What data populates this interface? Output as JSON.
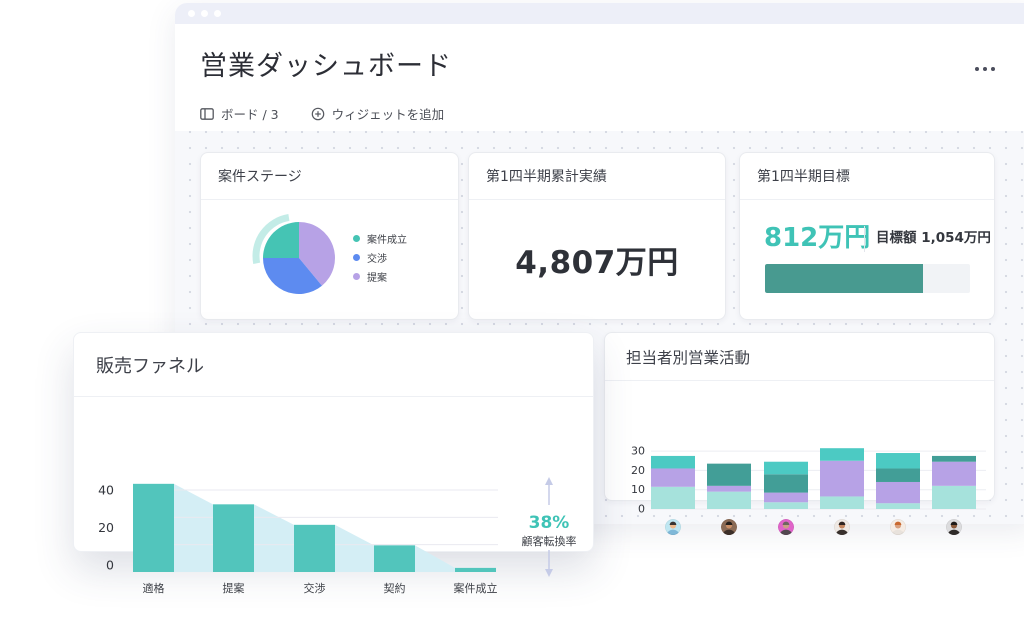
{
  "header": {
    "title": "営業ダッシュボード",
    "board_label": "ボード / 3",
    "add_widget_label": "ウィジェットを追加",
    "window_controls": [
      "dot",
      "dot",
      "dot"
    ],
    "more_options_icon": "ellipsis"
  },
  "colors": {
    "accent_teal": "#3fc3b6",
    "progress_fill": "#489a90",
    "progress_track": "#f1f3f6",
    "pie_teal": "#45c4b4",
    "pie_blue": "#5d8bf0",
    "pie_purple": "#b7a2e6",
    "funnel_bar": "#52c5bc",
    "funnel_area": "#d4eef5",
    "stack_mint": "#a6e2dc",
    "stack_purple": "#b7a2e6",
    "stack_darkteal": "#429e97",
    "stack_teal": "#4ccac3",
    "titlebar": "#edeff8",
    "grid_line": "#e9e9f0",
    "arrow": "#c5cbe7"
  },
  "cards": {
    "deal_stage": {
      "title": "案件ステージ"
    },
    "q1_actual": {
      "title": "第1四半期累計実績",
      "value": "4,807万円"
    },
    "q1_target": {
      "title": "第1四半期目標",
      "value": "812万円",
      "target_label": "目標額 1,054万円",
      "progress_ratio": 0.77
    },
    "funnel": {
      "title": "販売ファネル"
    },
    "activity": {
      "title": "担当者別営業活動",
      "avatars": [
        {
          "name": "avatar-1",
          "bg": "#bfe7f2",
          "skin": "#edb98c",
          "hair": "#3a3430",
          "shirt": "#7fb8d8"
        },
        {
          "name": "avatar-2",
          "bg": "#8a6a55",
          "skin": "#c98d64",
          "hair": "#241f1c",
          "shirt": "#3c2f28"
        },
        {
          "name": "avatar-3",
          "bg": "#e064c9",
          "skin": "#caa083",
          "hair": "#6e6560",
          "shirt": "#52474f"
        },
        {
          "name": "avatar-4",
          "bg": "#efe9e4",
          "skin": "#c2855f",
          "hair": "#2e2320",
          "shirt": "#38302c"
        },
        {
          "name": "avatar-5",
          "bg": "#f5ece4",
          "skin": "#d9a07e",
          "hair": "#c9692f",
          "shirt": "#e8e2dc"
        },
        {
          "name": "avatar-6",
          "bg": "#dcdcde",
          "skin": "#8a5a3c",
          "hair": "#1d1a18",
          "shirt": "#2f2b29"
        }
      ]
    }
  },
  "chart_data": [
    {
      "id": "deal-stage-pie",
      "type": "pie",
      "title": "案件ステージ",
      "slices": [
        {
          "label": "案件成立",
          "value": 25,
          "color": "#45c4b4"
        },
        {
          "label": "交渉",
          "value": 36,
          "color": "#5d8bf0"
        },
        {
          "label": "提案",
          "value": 39,
          "color": "#b7a2e6"
        }
      ],
      "legend_position": "right",
      "highlight": {
        "slice": "案件成立",
        "style": "outer-arc"
      }
    },
    {
      "id": "sales-funnel",
      "type": "bar",
      "subtype": "funnel",
      "title": "販売ファネル",
      "categories": [
        "適格",
        "提案",
        "交渉",
        "契約",
        "案件成立"
      ],
      "values": [
        43,
        33,
        23,
        13,
        2
      ],
      "yticks": [
        0,
        20,
        40
      ],
      "ylim": [
        0,
        45
      ],
      "grid": true,
      "bar_color": "#52c5bc",
      "area_color": "#d4eef5",
      "annotation": {
        "value": "38%",
        "label": "顧客転換率"
      }
    },
    {
      "id": "activity-stacked",
      "type": "bar",
      "subtype": "stacked",
      "title": "担当者別営業活動",
      "categories": [
        "avatar-1",
        "avatar-2",
        "avatar-3",
        "avatar-4",
        "avatar-5",
        "avatar-6"
      ],
      "series": [
        {
          "name": "layer-mint",
          "color": "#a6e2dc",
          "values": [
            11.5,
            9,
            3.5,
            6.5,
            3,
            12
          ]
        },
        {
          "name": "layer-purple",
          "color": "#b7a2e6",
          "values": [
            9.5,
            3,
            5,
            18.5,
            11,
            12.5
          ]
        },
        {
          "name": "layer-darkteal",
          "color": "#429e97",
          "values": [
            0,
            11.5,
            9.5,
            0,
            7,
            3
          ]
        },
        {
          "name": "layer-teal",
          "color": "#4ccac3",
          "values": [
            6.5,
            0,
            6.5,
            6.5,
            8,
            0
          ]
        }
      ],
      "yticks": [
        0,
        10,
        20,
        30
      ],
      "ylim": [
        0,
        33
      ],
      "grid": true,
      "legend": "none"
    }
  ]
}
